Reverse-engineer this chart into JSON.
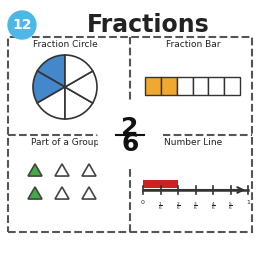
{
  "title": "Fractions",
  "badge_number": "12",
  "badge_color": "#4db8e8",
  "fraction_numerator": "2",
  "fraction_denominator": "6",
  "fraction_circle_title": "Fraction Circle",
  "fraction_bar_title": "Fraction Bar",
  "part_of_group_title": "Part of a Group",
  "number_line_title": "Number Line",
  "pie_filled_color": "#4488cc",
  "pie_empty_color": "#ffffff",
  "pie_line_color": "#333333",
  "bar_filled_color": "#f0a830",
  "bar_empty_color": "#ffffff",
  "bar_border_color": "#333333",
  "triangle_filled_color": "#44aa44",
  "triangle_empty_color": "#ffffff",
  "triangle_border_color": "#444444",
  "number_line_color": "#333333",
  "number_line_fill_color": "#cc2222",
  "outer_box_color": "#333333",
  "dashed_color": "#555555",
  "center_circle_color": "#ffffff",
  "center_circle_border": "#555555"
}
